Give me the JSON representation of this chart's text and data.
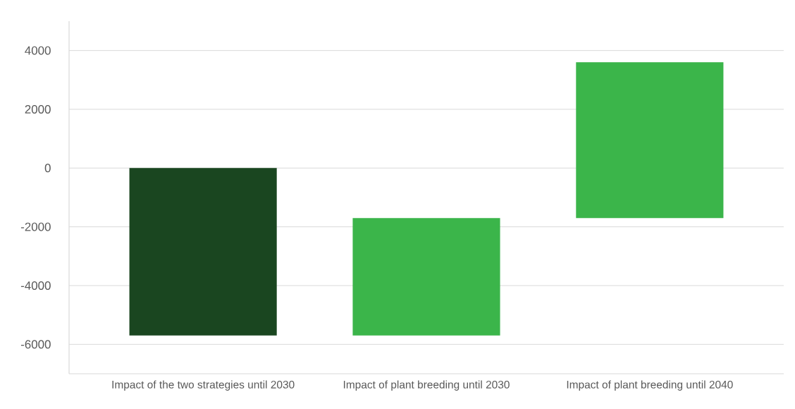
{
  "chart_data": {
    "type": "bar",
    "categories": [
      "Impact of the two strategies until 2030",
      "Impact of plant breeding until 2030",
      "Impact of plant breeding until 2040"
    ],
    "values": [
      -5700,
      4000,
      5300
    ],
    "base": [
      0,
      -5700,
      -1700
    ],
    "colors": [
      "#1a4620",
      "#3bb54a",
      "#3bb54a"
    ],
    "ylim": [
      -7000,
      5000
    ],
    "yticks": [
      4000,
      2000,
      0,
      -2000,
      -4000,
      -6000
    ],
    "grid": "y"
  }
}
